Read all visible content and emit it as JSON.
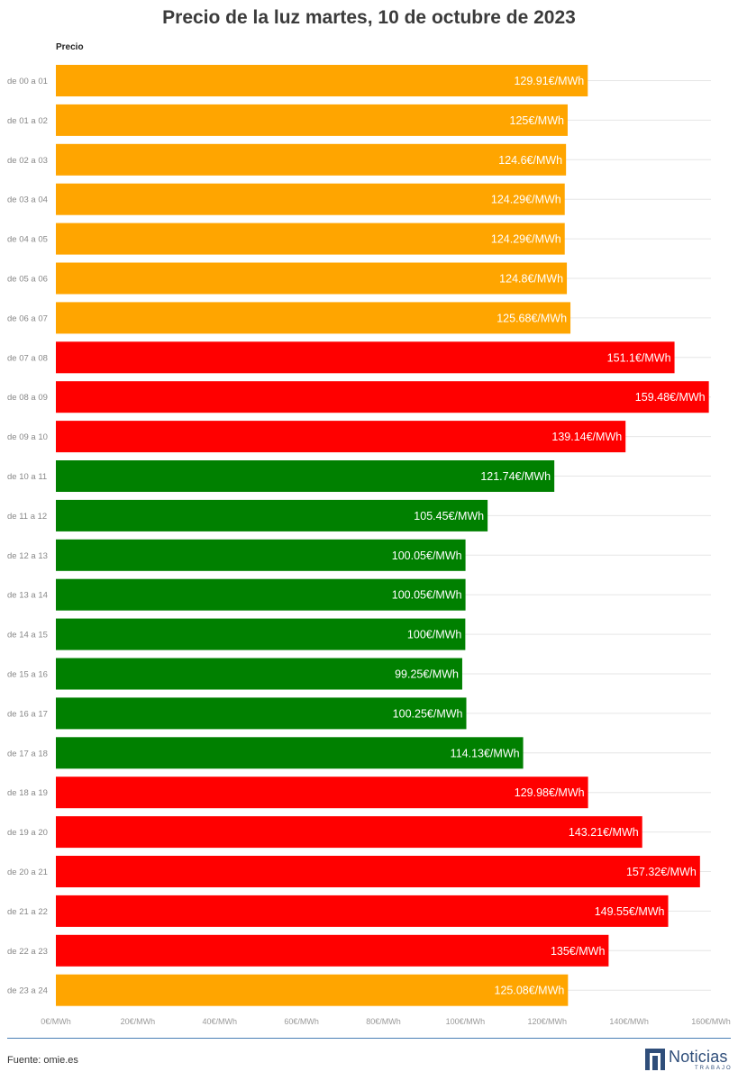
{
  "title": "Precio de la luz martes, 10 de octubre de 2023",
  "column_header": "Precio",
  "source": "Fuente: omie.es",
  "logo": {
    "name": "Noticias",
    "sub": "TRABAJO"
  },
  "colors": {
    "orange": "#FFA500",
    "red": "#FF0000",
    "green": "#008000",
    "grid": "#e6e6e6",
    "footer_line": "#4a7fb5",
    "logo": "#2f4e7a"
  },
  "chart_data": {
    "type": "bar",
    "orientation": "horizontal",
    "categories": [
      "de 00 a 01",
      "de 01 a 02",
      "de 02 a 03",
      "de 03 a 04",
      "de 04 a 05",
      "de 05 a 06",
      "de 06 a 07",
      "de 07 a 08",
      "de 08 a 09",
      "de 09 a 10",
      "de 10 a 11",
      "de 11 a 12",
      "de 12 a 13",
      "de 13 a 14",
      "de 14 a 15",
      "de 15 a 16",
      "de 16 a 17",
      "de 17 a 18",
      "de 18 a 19",
      "de 19 a 20",
      "de 20 a 21",
      "de 21 a 22",
      "de 22 a 23",
      "de 23 a 24"
    ],
    "values": [
      129.91,
      125,
      124.6,
      124.29,
      124.29,
      124.8,
      125.68,
      151.1,
      159.48,
      139.14,
      121.74,
      105.45,
      100.05,
      100.05,
      100,
      99.25,
      100.25,
      114.13,
      129.98,
      143.21,
      157.32,
      149.55,
      135,
      125.08
    ],
    "value_labels": [
      "129.91€/MWh",
      "125€/MWh",
      "124.6€/MWh",
      "124.29€/MWh",
      "124.29€/MWh",
      "124.8€/MWh",
      "125.68€/MWh",
      "151.1€/MWh",
      "159.48€/MWh",
      "139.14€/MWh",
      "121.74€/MWh",
      "105.45€/MWh",
      "100.05€/MWh",
      "100.05€/MWh",
      "100€/MWh",
      "99.25€/MWh",
      "100.25€/MWh",
      "114.13€/MWh",
      "129.98€/MWh",
      "143.21€/MWh",
      "157.32€/MWh",
      "149.55€/MWh",
      "135€/MWh",
      "125.08€/MWh"
    ],
    "bar_colors": [
      "orange",
      "orange",
      "orange",
      "orange",
      "orange",
      "orange",
      "orange",
      "red",
      "red",
      "red",
      "green",
      "green",
      "green",
      "green",
      "green",
      "green",
      "green",
      "green",
      "red",
      "red",
      "red",
      "red",
      "red",
      "orange"
    ],
    "xlim": [
      0,
      160
    ],
    "xticks": [
      0,
      20,
      40,
      60,
      80,
      100,
      120,
      140,
      160
    ],
    "xtick_labels": [
      "0€/MWh",
      "20€/MWh",
      "40€/MWh",
      "60€/MWh",
      "80€/MWh",
      "100€/MWh",
      "120€/MWh",
      "140€/MWh",
      "160€/MWh"
    ],
    "grid": true
  }
}
